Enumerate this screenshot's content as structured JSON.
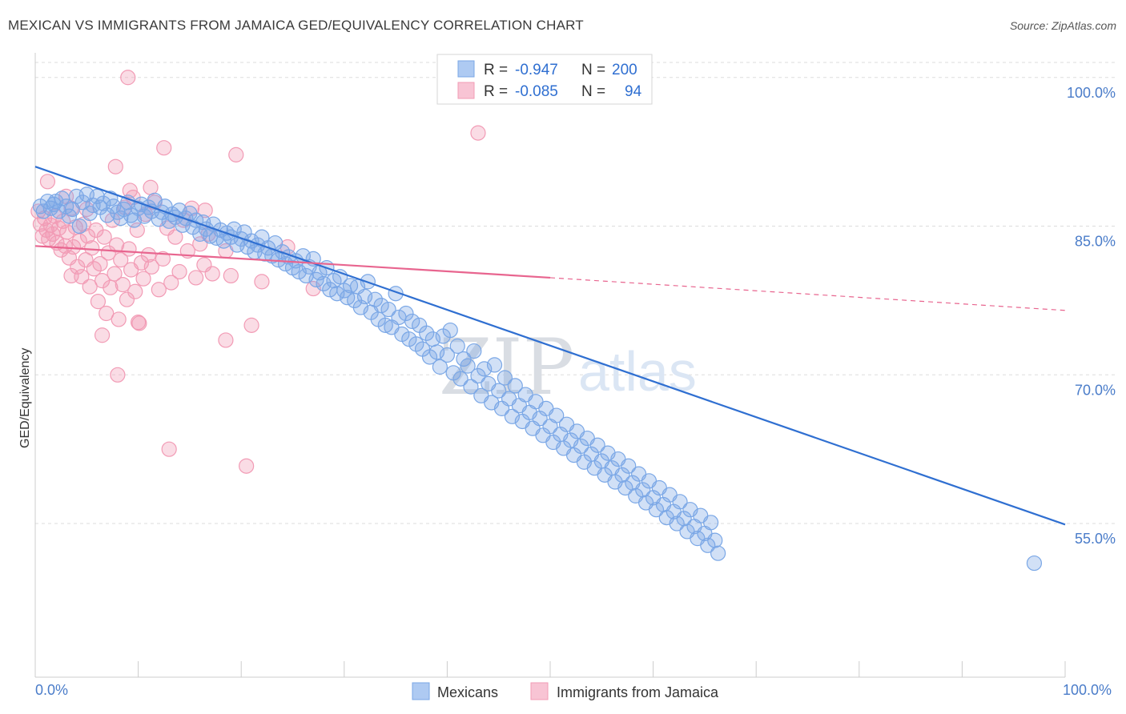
{
  "title": "MEXICAN VS IMMIGRANTS FROM JAMAICA GED/EQUIVALENCY CORRELATION CHART",
  "source": "Source: ZipAtlas.com",
  "watermark": {
    "left": "ZIP",
    "right": "atlas"
  },
  "colors": {
    "blue": "#7aa7e6",
    "blue_line": "#2f6fd1",
    "pink": "#f29bb5",
    "pink_line": "#e8658f",
    "tick_text": "#4a7cc9",
    "grid": "#dddddd"
  },
  "chart_data": {
    "type": "scatter",
    "xlabel": "",
    "ylabel": "GED/Equivalency",
    "xlim": [
      0,
      100
    ],
    "ylim": [
      39.5,
      102
    ],
    "x_tick_labels": {
      "left": "0.0%",
      "right": "100.0%"
    },
    "y_ticks": [
      {
        "value": 100,
        "label": "100.0%"
      },
      {
        "value": 85,
        "label": "85.0%"
      },
      {
        "value": 70,
        "label": "70.0%"
      },
      {
        "value": 55,
        "label": "55.0%"
      }
    ],
    "grid": true,
    "legend": {
      "placement": "top-center",
      "rows": [
        {
          "r_label": "R =",
          "r_value": "-0.947",
          "n_label": "N =",
          "n_value": "200"
        },
        {
          "r_label": "R =",
          "r_value": "-0.085",
          "n_label": "N =",
          "n_value": "94"
        }
      ]
    },
    "series": [
      {
        "name": "Mexicans",
        "color": "#7aa7e6",
        "trend": {
          "x": [
            0,
            100
          ],
          "y": [
            91.0,
            54.9
          ]
        },
        "points": [
          [
            0.5,
            87.0
          ],
          [
            0.8,
            86.5
          ],
          [
            1.2,
            87.5
          ],
          [
            1.5,
            86.8
          ],
          [
            1.8,
            87.2
          ],
          [
            2.0,
            87.5
          ],
          [
            2.3,
            86.5
          ],
          [
            2.6,
            87.8
          ],
          [
            3.0,
            87.0
          ],
          [
            3.3,
            86.0
          ],
          [
            3.6,
            86.7
          ],
          [
            4.0,
            88.0
          ],
          [
            4.3,
            85.0
          ],
          [
            4.6,
            87.4
          ],
          [
            5.0,
            88.2
          ],
          [
            5.3,
            86.3
          ],
          [
            5.6,
            87.1
          ],
          [
            6.0,
            88.0
          ],
          [
            6.3,
            86.9
          ],
          [
            6.6,
            87.3
          ],
          [
            7.0,
            86.1
          ],
          [
            7.3,
            87.8
          ],
          [
            7.6,
            87.0
          ],
          [
            8.0,
            86.4
          ],
          [
            8.3,
            85.8
          ],
          [
            8.6,
            86.7
          ],
          [
            9.0,
            87.4
          ],
          [
            9.3,
            86.1
          ],
          [
            9.6,
            85.6
          ],
          [
            10.0,
            86.8
          ],
          [
            10.3,
            87.2
          ],
          [
            10.6,
            86.0
          ],
          [
            11.0,
            86.9
          ],
          [
            11.3,
            86.5
          ],
          [
            11.6,
            87.6
          ],
          [
            12.0,
            85.7
          ],
          [
            12.3,
            86.4
          ],
          [
            12.6,
            87.0
          ],
          [
            13.0,
            85.5
          ],
          [
            13.3,
            86.2
          ],
          [
            13.6,
            85.9
          ],
          [
            14.0,
            86.6
          ],
          [
            14.3,
            85.1
          ],
          [
            14.6,
            85.8
          ],
          [
            15.0,
            86.3
          ],
          [
            15.3,
            84.9
          ],
          [
            15.6,
            85.6
          ],
          [
            16.0,
            84.2
          ],
          [
            16.3,
            85.4
          ],
          [
            16.6,
            84.7
          ],
          [
            17.0,
            84.0
          ],
          [
            17.3,
            85.2
          ],
          [
            17.6,
            83.8
          ],
          [
            18.0,
            84.6
          ],
          [
            18.3,
            83.5
          ],
          [
            18.6,
            84.3
          ],
          [
            19.0,
            83.9
          ],
          [
            19.3,
            84.7
          ],
          [
            19.6,
            83.1
          ],
          [
            20.0,
            83.7
          ],
          [
            20.3,
            84.4
          ],
          [
            20.6,
            82.9
          ],
          [
            21.0,
            83.5
          ],
          [
            21.3,
            82.4
          ],
          [
            21.6,
            83.1
          ],
          [
            22.0,
            83.9
          ],
          [
            22.3,
            82.2
          ],
          [
            22.6,
            82.8
          ],
          [
            23.0,
            82.0
          ],
          [
            23.3,
            83.3
          ],
          [
            23.6,
            81.6
          ],
          [
            24.0,
            82.4
          ],
          [
            24.3,
            81.2
          ],
          [
            24.6,
            81.9
          ],
          [
            25.0,
            80.8
          ],
          [
            25.3,
            81.5
          ],
          [
            25.6,
            80.4
          ],
          [
            26.0,
            82.0
          ],
          [
            26.3,
            80.0
          ],
          [
            26.6,
            80.9
          ],
          [
            27.0,
            81.7
          ],
          [
            27.3,
            79.6
          ],
          [
            27.6,
            80.3
          ],
          [
            28.0,
            79.2
          ],
          [
            28.3,
            80.8
          ],
          [
            28.6,
            78.6
          ],
          [
            29.0,
            79.5
          ],
          [
            29.3,
            78.2
          ],
          [
            29.6,
            79.9
          ],
          [
            30.0,
            78.5
          ],
          [
            30.3,
            77.8
          ],
          [
            30.6,
            79.0
          ],
          [
            31.0,
            77.5
          ],
          [
            31.3,
            78.9
          ],
          [
            31.6,
            76.8
          ],
          [
            32.0,
            77.9
          ],
          [
            32.3,
            79.4
          ],
          [
            32.6,
            76.3
          ],
          [
            33.0,
            77.6
          ],
          [
            33.3,
            75.6
          ],
          [
            33.6,
            77.0
          ],
          [
            34.0,
            75.0
          ],
          [
            34.3,
            76.6
          ],
          [
            34.6,
            74.8
          ],
          [
            35.0,
            78.2
          ],
          [
            35.3,
            75.8
          ],
          [
            35.6,
            74.1
          ],
          [
            36.0,
            76.2
          ],
          [
            36.3,
            73.6
          ],
          [
            36.6,
            75.4
          ],
          [
            37.0,
            73.1
          ],
          [
            37.3,
            75.0
          ],
          [
            37.6,
            72.6
          ],
          [
            38.0,
            74.2
          ],
          [
            38.3,
            71.8
          ],
          [
            38.6,
            73.6
          ],
          [
            39.0,
            72.3
          ],
          [
            39.3,
            70.8
          ],
          [
            39.6,
            73.9
          ],
          [
            40.0,
            72.0
          ],
          [
            40.3,
            74.5
          ],
          [
            40.6,
            70.2
          ],
          [
            41.0,
            72.9
          ],
          [
            41.3,
            69.6
          ],
          [
            41.6,
            71.6
          ],
          [
            42.0,
            70.9
          ],
          [
            42.3,
            68.8
          ],
          [
            42.6,
            72.4
          ],
          [
            43.0,
            69.9
          ],
          [
            43.3,
            67.9
          ],
          [
            43.6,
            70.6
          ],
          [
            44.0,
            69.1
          ],
          [
            44.3,
            67.2
          ],
          [
            44.6,
            71.0
          ],
          [
            45.0,
            68.4
          ],
          [
            45.3,
            66.6
          ],
          [
            45.6,
            69.7
          ],
          [
            46.0,
            67.6
          ],
          [
            46.3,
            65.8
          ],
          [
            46.6,
            68.9
          ],
          [
            47.0,
            66.9
          ],
          [
            47.3,
            65.3
          ],
          [
            47.6,
            68.0
          ],
          [
            48.0,
            66.2
          ],
          [
            48.3,
            64.6
          ],
          [
            48.6,
            67.3
          ],
          [
            49.0,
            65.6
          ],
          [
            49.3,
            63.9
          ],
          [
            49.6,
            66.6
          ],
          [
            50.0,
            64.8
          ],
          [
            50.3,
            63.2
          ],
          [
            50.6,
            65.9
          ],
          [
            51.0,
            64.0
          ],
          [
            51.3,
            62.6
          ],
          [
            51.6,
            65.0
          ],
          [
            52.0,
            63.4
          ],
          [
            52.3,
            61.9
          ],
          [
            52.6,
            64.3
          ],
          [
            53.0,
            62.8
          ],
          [
            53.3,
            61.2
          ],
          [
            53.6,
            63.6
          ],
          [
            54.0,
            62.0
          ],
          [
            54.3,
            60.6
          ],
          [
            54.6,
            62.9
          ],
          [
            55.0,
            61.3
          ],
          [
            55.3,
            59.9
          ],
          [
            55.6,
            62.1
          ],
          [
            56.0,
            60.6
          ],
          [
            56.3,
            59.2
          ],
          [
            56.6,
            61.5
          ],
          [
            57.0,
            59.9
          ],
          [
            57.3,
            58.6
          ],
          [
            57.6,
            60.8
          ],
          [
            58.0,
            59.1
          ],
          [
            58.3,
            57.8
          ],
          [
            58.6,
            60.0
          ],
          [
            59.0,
            58.4
          ],
          [
            59.3,
            57.1
          ],
          [
            59.6,
            59.3
          ],
          [
            60.0,
            57.6
          ],
          [
            60.3,
            56.4
          ],
          [
            60.6,
            58.6
          ],
          [
            61.0,
            56.9
          ],
          [
            61.3,
            55.6
          ],
          [
            61.6,
            57.9
          ],
          [
            62.0,
            56.2
          ],
          [
            62.3,
            55.0
          ],
          [
            62.6,
            57.2
          ],
          [
            63.0,
            55.5
          ],
          [
            63.3,
            54.2
          ],
          [
            63.6,
            56.4
          ],
          [
            64.0,
            54.7
          ],
          [
            64.3,
            53.5
          ],
          [
            64.6,
            55.8
          ],
          [
            65.0,
            54.0
          ],
          [
            65.3,
            52.8
          ],
          [
            65.6,
            55.1
          ],
          [
            66.0,
            53.3
          ],
          [
            66.3,
            52.0
          ],
          [
            97.0,
            51.0
          ]
        ]
      },
      {
        "name": "Immigrants from Jamaica",
        "color": "#f29bb5",
        "trend": {
          "x": [
            0,
            50
          ],
          "y": [
            83.0,
            79.8
          ]
        },
        "trend_dashed": {
          "x": [
            50,
            100
          ],
          "y": [
            79.8,
            76.5
          ]
        },
        "points": [
          [
            0.3,
            86.5
          ],
          [
            0.5,
            85.2
          ],
          [
            0.7,
            84.0
          ],
          [
            0.9,
            85.8
          ],
          [
            1.1,
            84.6
          ],
          [
            1.3,
            83.7
          ],
          [
            1.5,
            85.1
          ],
          [
            1.7,
            84.2
          ],
          [
            1.9,
            86.0
          ],
          [
            2.1,
            83.3
          ],
          [
            2.3,
            84.8
          ],
          [
            2.5,
            82.6
          ],
          [
            2.7,
            85.5
          ],
          [
            2.9,
            83.0
          ],
          [
            3.1,
            84.4
          ],
          [
            3.3,
            81.8
          ],
          [
            3.5,
            86.8
          ],
          [
            3.7,
            82.9
          ],
          [
            3.9,
            84.9
          ],
          [
            4.1,
            80.9
          ],
          [
            4.3,
            83.5
          ],
          [
            4.5,
            79.9
          ],
          [
            4.7,
            85.2
          ],
          [
            4.9,
            81.6
          ],
          [
            5.1,
            84.0
          ],
          [
            5.3,
            78.9
          ],
          [
            5.5,
            82.8
          ],
          [
            5.7,
            80.7
          ],
          [
            5.9,
            84.6
          ],
          [
            6.1,
            77.4
          ],
          [
            6.3,
            81.2
          ],
          [
            6.5,
            79.5
          ],
          [
            6.7,
            83.9
          ],
          [
            6.9,
            76.2
          ],
          [
            7.1,
            82.3
          ],
          [
            7.3,
            78.8
          ],
          [
            7.5,
            85.6
          ],
          [
            7.7,
            80.2
          ],
          [
            7.9,
            83.1
          ],
          [
            8.1,
            75.6
          ],
          [
            8.3,
            81.6
          ],
          [
            8.5,
            79.1
          ],
          [
            8.7,
            86.9
          ],
          [
            8.9,
            77.6
          ],
          [
            9.1,
            82.7
          ],
          [
            9.3,
            80.6
          ],
          [
            9.5,
            87.9
          ],
          [
            9.7,
            78.4
          ],
          [
            9.9,
            84.6
          ],
          [
            10.1,
            75.2
          ],
          [
            10.3,
            81.3
          ],
          [
            10.5,
            79.7
          ],
          [
            10.7,
            86.2
          ],
          [
            11.0,
            82.1
          ],
          [
            11.3,
            80.9
          ],
          [
            11.6,
            87.4
          ],
          [
            12.0,
            78.6
          ],
          [
            12.4,
            81.7
          ],
          [
            12.8,
            84.8
          ],
          [
            13.2,
            79.3
          ],
          [
            13.6,
            83.9
          ],
          [
            14.0,
            80.4
          ],
          [
            14.4,
            85.6
          ],
          [
            14.8,
            82.5
          ],
          [
            15.2,
            86.8
          ],
          [
            15.6,
            79.8
          ],
          [
            16.0,
            83.2
          ],
          [
            16.4,
            81.1
          ],
          [
            16.8,
            84.2
          ],
          [
            17.2,
            80.2
          ],
          [
            1.2,
            89.5
          ],
          [
            3.0,
            88.0
          ],
          [
            5.0,
            86.7
          ],
          [
            7.8,
            91.0
          ],
          [
            9.2,
            88.6
          ],
          [
            11.2,
            88.9
          ],
          [
            12.5,
            92.9
          ],
          [
            16.5,
            86.6
          ],
          [
            19.5,
            92.2
          ],
          [
            22.0,
            79.4
          ],
          [
            9.0,
            100.0
          ],
          [
            3.5,
            80.0
          ],
          [
            6.5,
            74.0
          ],
          [
            13.0,
            62.5
          ],
          [
            8.0,
            70.0
          ],
          [
            20.5,
            60.8
          ],
          [
            18.5,
            73.5
          ],
          [
            19.0,
            80.0
          ],
          [
            21.0,
            75.0
          ],
          [
            24.5,
            82.9
          ],
          [
            27.0,
            78.7
          ],
          [
            18.5,
            82.5
          ],
          [
            10.0,
            75.3
          ],
          [
            43.0,
            94.4
          ]
        ]
      }
    ]
  },
  "bottom_legend": [
    {
      "label": "Mexicans",
      "color": "#7aa7e6"
    },
    {
      "label": "Immigrants from Jamaica",
      "color": "#f29bb5"
    }
  ]
}
